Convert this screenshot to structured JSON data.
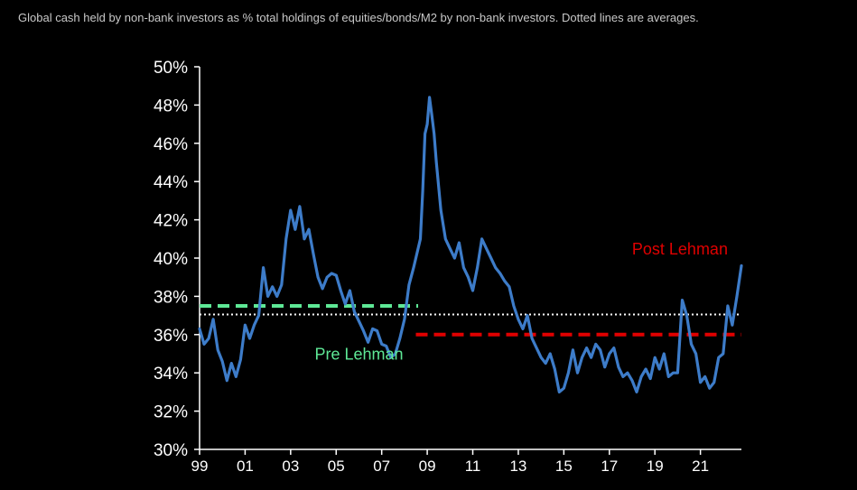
{
  "chart_data": {
    "type": "line",
    "title": "Global cash held by non-bank investors as % total holdings of equities/bonds/M2 by non-bank investors. Dotted lines are averages.",
    "xlabel": "",
    "ylabel": "",
    "xlim": [
      1999.0,
      2022.8
    ],
    "ylim": [
      30,
      50
    ],
    "y_ticks": [
      30,
      32,
      34,
      36,
      38,
      40,
      42,
      44,
      46,
      48,
      50
    ],
    "y_tick_labels": [
      "30%",
      "32%",
      "34%",
      "36%",
      "38%",
      "40%",
      "42%",
      "44%",
      "46%",
      "48%",
      "50%"
    ],
    "x_ticks": [
      1999,
      2001,
      2003,
      2005,
      2007,
      2009,
      2011,
      2013,
      2015,
      2017,
      2019,
      2021
    ],
    "x_tick_labels": [
      "99",
      "01",
      "03",
      "05",
      "07",
      "09",
      "11",
      "13",
      "15",
      "17",
      "19",
      "21"
    ],
    "grid": false,
    "legend": "none",
    "series": [
      {
        "color": "#3d7cc9",
        "x": [
          1999.0,
          1999.2,
          1999.4,
          1999.6,
          1999.8,
          2000.0,
          2000.2,
          2000.4,
          2000.6,
          2000.8,
          2001.0,
          2001.2,
          2001.4,
          2001.6,
          2001.8,
          2002.0,
          2002.2,
          2002.4,
          2002.6,
          2002.8,
          2003.0,
          2003.2,
          2003.4,
          2003.6,
          2003.8,
          2004.0,
          2004.2,
          2004.4,
          2004.6,
          2004.8,
          2005.0,
          2005.2,
          2005.4,
          2005.6,
          2005.8,
          2006.0,
          2006.2,
          2006.4,
          2006.6,
          2006.8,
          2007.0,
          2007.2,
          2007.4,
          2007.6,
          2007.8,
          2008.0,
          2008.2,
          2008.4,
          2008.6,
          2008.7,
          2008.8,
          2008.9,
          2009.0,
          2009.1,
          2009.2,
          2009.3,
          2009.4,
          2009.6,
          2009.8,
          2010.0,
          2010.2,
          2010.4,
          2010.6,
          2010.8,
          2011.0,
          2011.2,
          2011.4,
          2011.6,
          2011.8,
          2012.0,
          2012.2,
          2012.4,
          2012.6,
          2012.8,
          2013.0,
          2013.2,
          2013.4,
          2013.6,
          2013.8,
          2014.0,
          2014.2,
          2014.4,
          2014.6,
          2014.8,
          2015.0,
          2015.2,
          2015.4,
          2015.6,
          2015.8,
          2016.0,
          2016.2,
          2016.4,
          2016.6,
          2016.8,
          2017.0,
          2017.2,
          2017.4,
          2017.6,
          2017.8,
          2018.0,
          2018.2,
          2018.4,
          2018.6,
          2018.8,
          2019.0,
          2019.2,
          2019.4,
          2019.6,
          2019.8,
          2020.0,
          2020.2,
          2020.4,
          2020.6,
          2020.8,
          2021.0,
          2021.2,
          2021.4,
          2021.6,
          2021.8,
          2022.0,
          2022.2,
          2022.4,
          2022.6,
          2022.8
        ],
        "values": [
          36.3,
          35.5,
          35.8,
          36.8,
          35.2,
          34.6,
          33.6,
          34.5,
          33.8,
          34.7,
          36.5,
          35.8,
          36.5,
          37.0,
          39.5,
          38.0,
          38.5,
          38.0,
          38.6,
          41.0,
          42.5,
          41.5,
          42.7,
          41.0,
          41.5,
          40.2,
          39.0,
          38.4,
          39.0,
          39.2,
          39.1,
          38.3,
          37.6,
          38.3,
          37.2,
          36.7,
          36.2,
          35.6,
          36.3,
          36.2,
          35.5,
          35.4,
          34.8,
          35.0,
          35.8,
          36.8,
          38.6,
          39.5,
          40.5,
          41.0,
          43.5,
          46.5,
          47.0,
          48.4,
          47.5,
          46.5,
          45.0,
          42.5,
          41.0,
          40.5,
          40.0,
          40.8,
          39.5,
          39.0,
          38.3,
          39.5,
          41.0,
          40.5,
          40.0,
          39.5,
          39.2,
          38.8,
          38.5,
          37.5,
          36.8,
          36.3,
          37.0,
          35.8,
          35.3,
          34.8,
          34.5,
          35.0,
          34.2,
          33.0,
          33.2,
          34.0,
          35.2,
          34.0,
          34.8,
          35.3,
          34.8,
          35.5,
          35.2,
          34.3,
          35.0,
          35.3,
          34.3,
          33.8,
          34.0,
          33.6,
          33.0,
          33.8,
          34.2,
          33.7,
          34.8,
          34.2,
          35.0,
          33.8,
          34.0,
          34.0,
          37.8,
          37.0,
          35.5,
          35.0,
          33.5,
          33.8,
          33.2,
          33.5,
          34.8,
          35.0,
          37.5,
          36.5,
          38.0,
          39.6
        ]
      }
    ],
    "averages": [
      {
        "name": "Pre Lehman",
        "value": 37.5,
        "x_start": 1999.0,
        "x_end": 2008.6,
        "color": "#5ee896"
      },
      {
        "name": "Post Lehman",
        "value": 36.0,
        "x_start": 2008.5,
        "x_end": 2022.8,
        "color": "#e00000"
      },
      {
        "value": 37.05,
        "x_start": 1999.0,
        "x_end": 2022.8,
        "color": "#ffffff"
      }
    ],
    "annotations": [
      {
        "text": "Pre Lehman",
        "x": 2006.0,
        "y": 34.7,
        "color": "#5ee896"
      },
      {
        "text": "Post Lehman",
        "x": 2020.1,
        "y": 40.2,
        "color": "#e00000"
      }
    ]
  }
}
